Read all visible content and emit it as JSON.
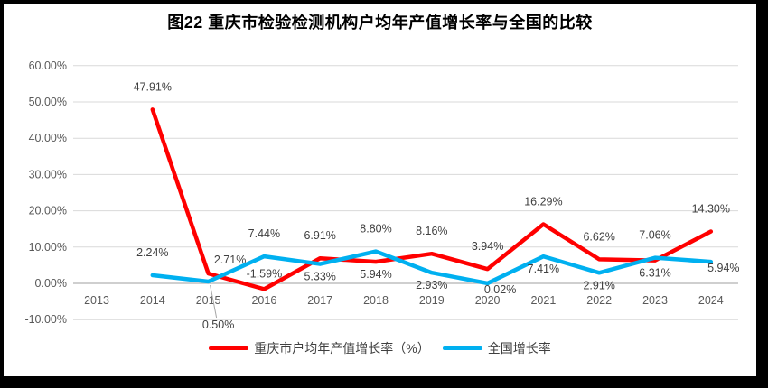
{
  "title": "图22 重庆市检验检测机构户均年产值增长率与全国的比较",
  "chart_data": {
    "type": "line",
    "categories": [
      "2013",
      "2014",
      "2015",
      "2016",
      "2017",
      "2018",
      "2019",
      "2020",
      "2021",
      "2022",
      "2023",
      "2024"
    ],
    "y_axis": {
      "ticks": [
        {
          "label": "60.00%",
          "value": 60
        },
        {
          "label": "50.00%",
          "value": 50
        },
        {
          "label": "40.00%",
          "value": 40
        },
        {
          "label": "30.00%",
          "value": 30
        },
        {
          "label": "20.00%",
          "value": 20
        },
        {
          "label": "10.00%",
          "value": 10
        },
        {
          "label": "0.00%",
          "value": 0
        },
        {
          "label": "-10.00%",
          "value": -10
        }
      ],
      "range": [
        -10,
        60
      ],
      "grid": true
    },
    "series": [
      {
        "name": "重庆市户均年产值增长率（%）",
        "color": "#FF0000",
        "values": [
          null,
          47.91,
          2.71,
          -1.59,
          6.91,
          5.94,
          8.16,
          3.94,
          16.29,
          6.62,
          6.31,
          14.3
        ],
        "label_sides": [
          null,
          "above",
          "above-right",
          "above-close",
          "above",
          "below",
          "above",
          "above",
          "above",
          "above",
          "below",
          "above"
        ]
      },
      {
        "name": "全国增长率",
        "color": "#00B0F0",
        "values": [
          null,
          2.24,
          0.5,
          7.44,
          5.33,
          8.8,
          2.93,
          0.02,
          7.41,
          2.91,
          7.06,
          5.94
        ],
        "label_sides": [
          null,
          "above",
          "callout-below",
          "above",
          "below",
          "above",
          "below",
          "below-right",
          "below",
          "below",
          "above",
          "below-right"
        ]
      }
    ],
    "data_label_format": "0.00%",
    "legend_position": "bottom"
  },
  "style": {
    "frame_border": "#000000",
    "background": "#FFFFFF",
    "gridline": "#D9D9D9",
    "zero_line": "#BFBFBF",
    "leader_line": "#A6A6A6",
    "tick_text": "#595959",
    "data_label_text": "#404040"
  }
}
